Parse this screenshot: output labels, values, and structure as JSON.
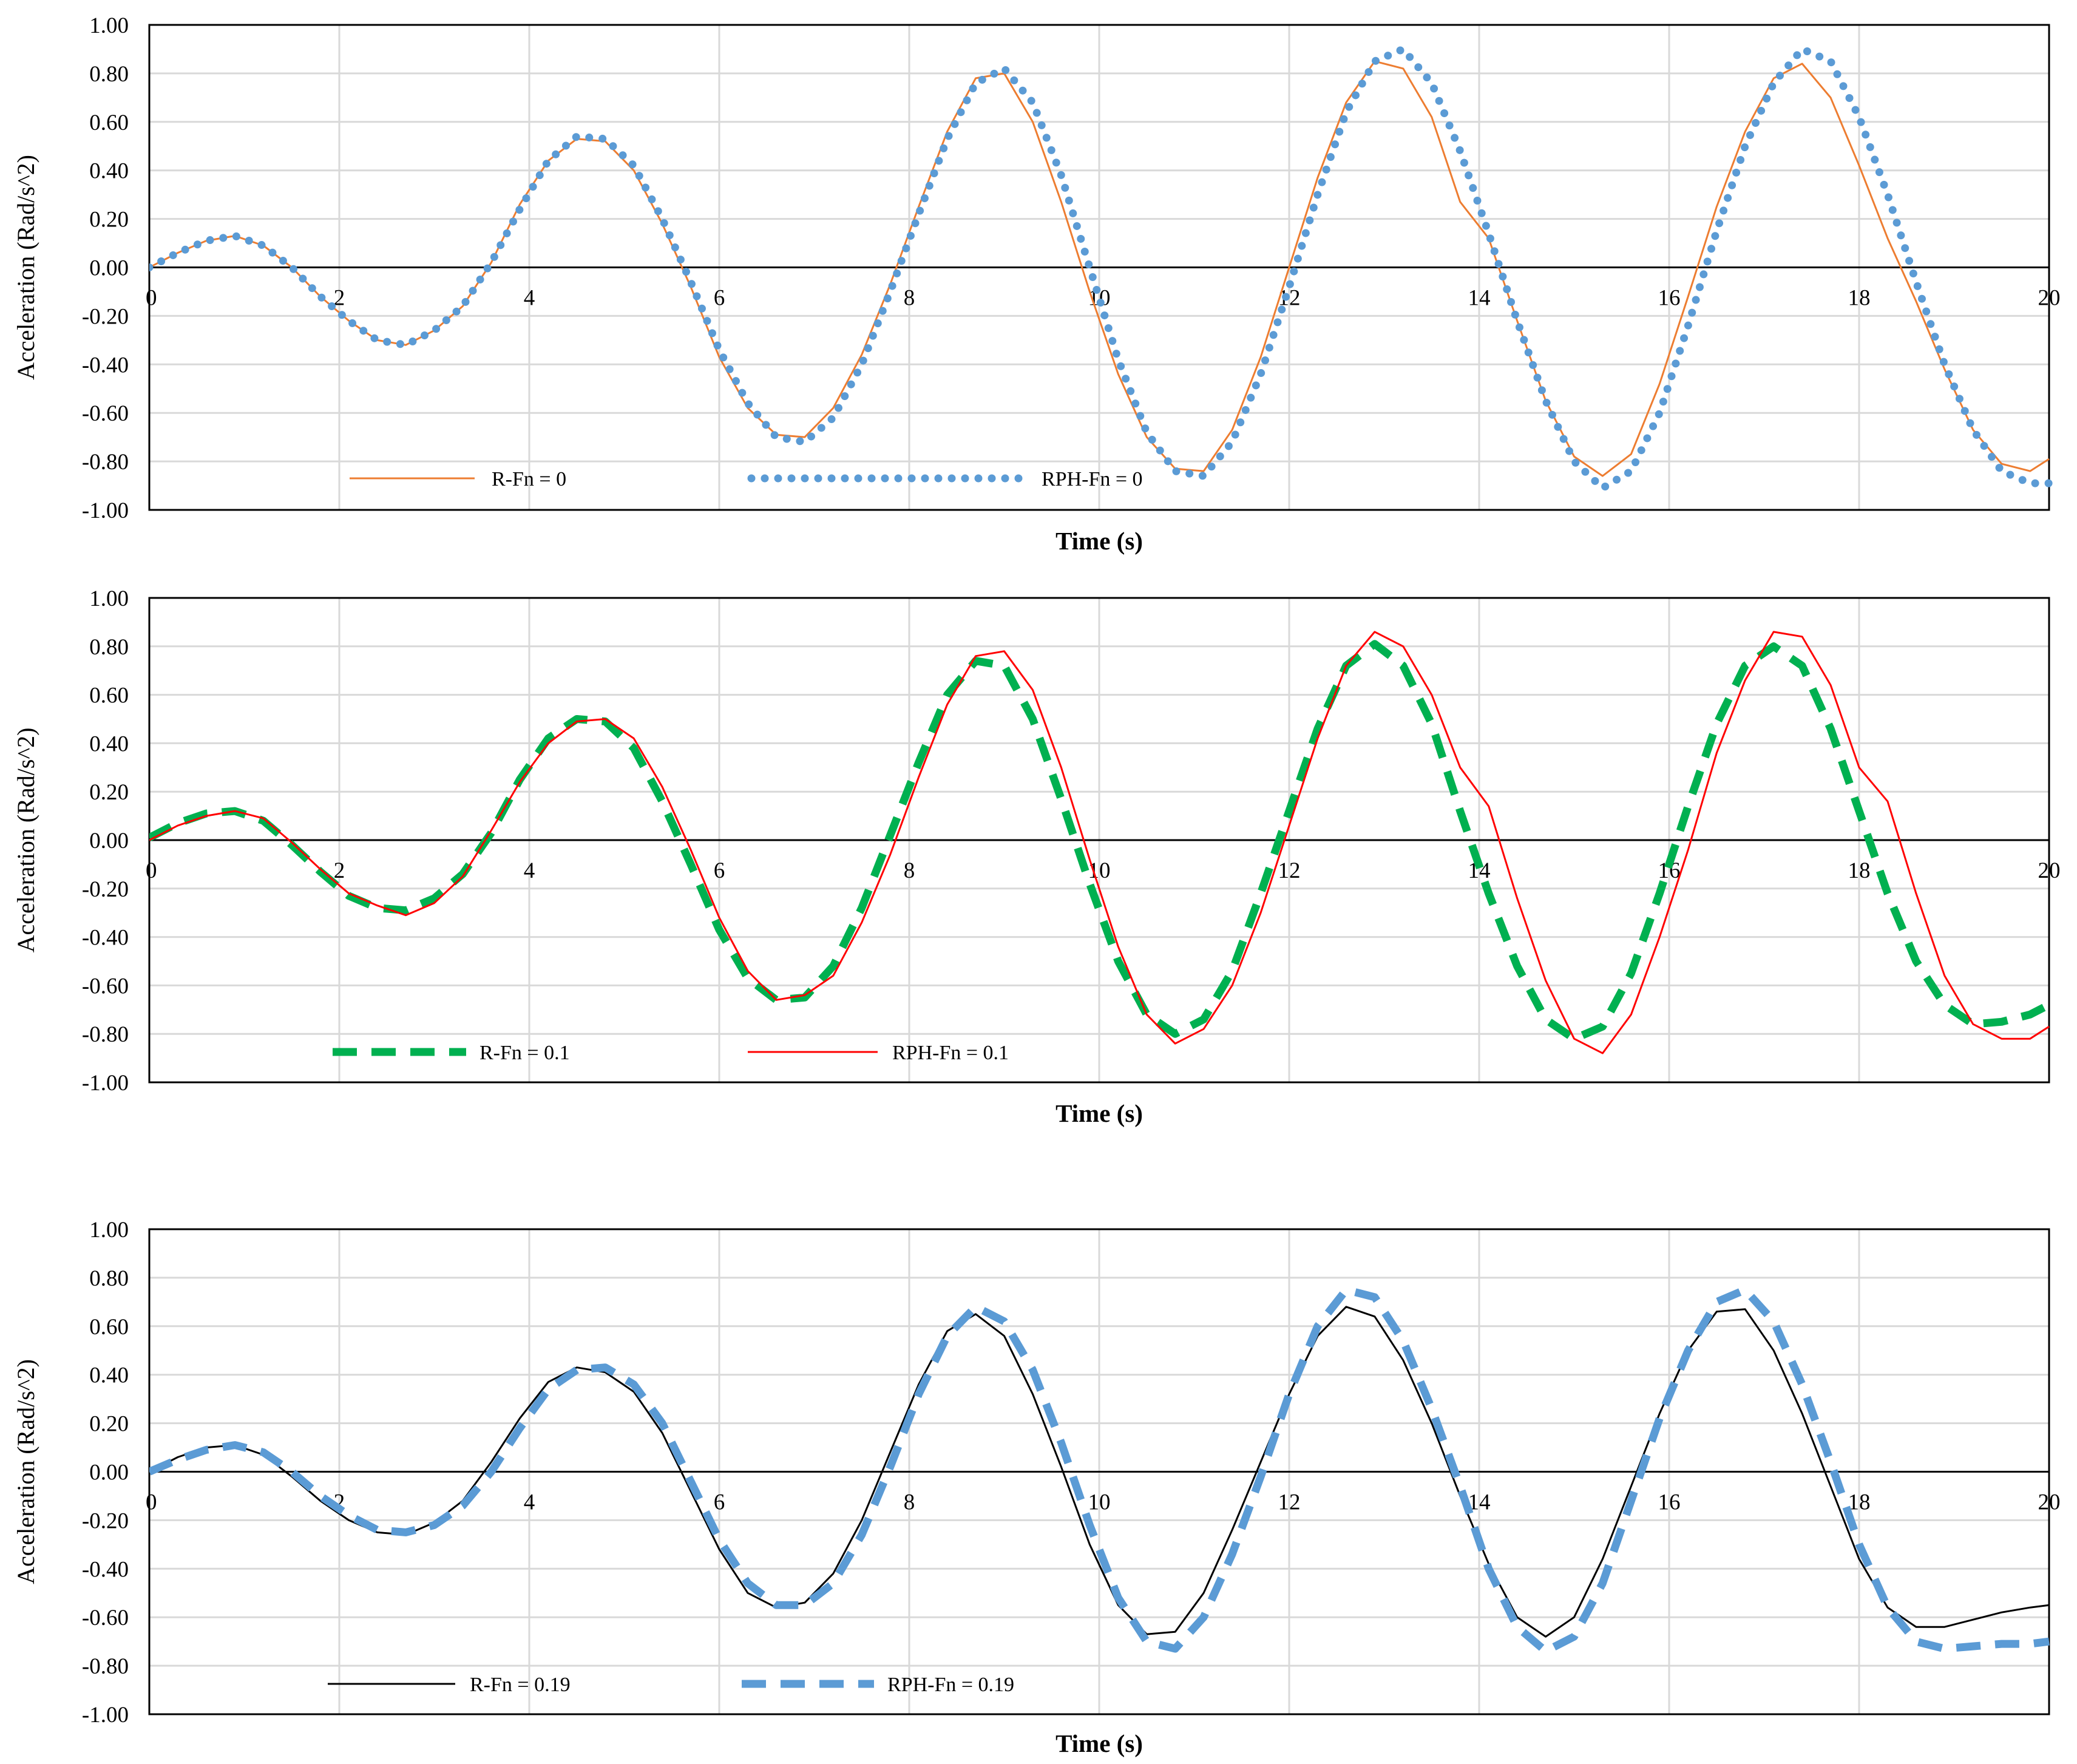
{
  "chart_data": [
    {
      "type": "line",
      "xlabel": "Time (s)",
      "ylabel": "Acceleration (Rad/s^2)",
      "xlim": [
        0,
        20
      ],
      "ylim": [
        -1.0,
        1.0
      ],
      "x_ticks": [
        "0",
        "2",
        "4",
        "6",
        "8",
        "10",
        "12",
        "14",
        "16",
        "18",
        "20"
      ],
      "y_ticks": [
        "1.00",
        "0.80",
        "0.60",
        "0.40",
        "0.20",
        "0.00",
        "-0.20",
        "-0.40",
        "-0.60",
        "-0.80",
        "-1.00"
      ],
      "grid": true,
      "legend_position": "bottom-left",
      "series": [
        {
          "name": "R-Fn = 0",
          "color": "#ED7D31",
          "style": "solid",
          "x": [
            0,
            0.3,
            0.6,
            0.9,
            1.2,
            1.5,
            1.8,
            2.1,
            2.4,
            2.7,
            3.0,
            3.3,
            3.6,
            3.9,
            4.2,
            4.5,
            4.8,
            5.1,
            5.4,
            5.7,
            6.0,
            6.3,
            6.6,
            6.9,
            7.2,
            7.5,
            7.8,
            8.1,
            8.4,
            8.7,
            9.0,
            9.3,
            9.6,
            9.9,
            10.2,
            10.5,
            10.8,
            11.1,
            11.4,
            11.7,
            12.0,
            12.3,
            12.6,
            12.9,
            13.2,
            13.5,
            13.8,
            14.1,
            14.4,
            14.7,
            15.0,
            15.3,
            15.6,
            15.9,
            16.2,
            16.5,
            16.8,
            17.1,
            17.4,
            17.7,
            18.0,
            18.3,
            18.6,
            18.9,
            19.2,
            19.5,
            19.8,
            20.0
          ],
          "y": [
            0.0,
            0.06,
            0.11,
            0.13,
            0.09,
            0.0,
            -0.12,
            -0.22,
            -0.3,
            -0.32,
            -0.26,
            -0.16,
            0.02,
            0.26,
            0.44,
            0.53,
            0.52,
            0.4,
            0.18,
            -0.08,
            -0.37,
            -0.58,
            -0.69,
            -0.7,
            -0.58,
            -0.36,
            -0.07,
            0.25,
            0.56,
            0.78,
            0.8,
            0.6,
            0.27,
            -0.1,
            -0.44,
            -0.7,
            -0.83,
            -0.84,
            -0.67,
            -0.37,
            0.0,
            0.37,
            0.68,
            0.85,
            0.82,
            0.62,
            0.27,
            0.12,
            -0.22,
            -0.55,
            -0.78,
            -0.86,
            -0.77,
            -0.48,
            -0.12,
            0.25,
            0.56,
            0.78,
            0.84,
            0.7,
            0.42,
            0.12,
            -0.14,
            -0.42,
            -0.67,
            -0.81,
            -0.84,
            -0.79
          ]
        },
        {
          "name": "RPH-Fn = 0",
          "color": "#5B9BD5",
          "style": "dotted",
          "x": [
            0,
            0.3,
            0.6,
            0.9,
            1.2,
            1.5,
            1.8,
            2.1,
            2.4,
            2.7,
            3.0,
            3.3,
            3.6,
            3.9,
            4.2,
            4.5,
            4.8,
            5.1,
            5.4,
            5.7,
            6.0,
            6.3,
            6.6,
            6.9,
            7.2,
            7.5,
            7.8,
            8.1,
            8.4,
            8.7,
            9.0,
            9.3,
            9.6,
            9.9,
            10.2,
            10.5,
            10.8,
            11.1,
            11.4,
            11.7,
            12.0,
            12.3,
            12.6,
            12.9,
            13.2,
            13.5,
            13.8,
            14.1,
            14.4,
            14.7,
            15.0,
            15.3,
            15.6,
            15.9,
            16.2,
            16.5,
            16.8,
            17.1,
            17.4,
            17.7,
            18.0,
            18.3,
            18.6,
            18.9,
            19.2,
            19.5,
            19.8,
            20.0
          ],
          "y": [
            0.0,
            0.06,
            0.11,
            0.13,
            0.09,
            0.0,
            -0.12,
            -0.22,
            -0.3,
            -0.32,
            -0.26,
            -0.16,
            0.02,
            0.24,
            0.44,
            0.54,
            0.53,
            0.42,
            0.2,
            -0.06,
            -0.34,
            -0.56,
            -0.7,
            -0.72,
            -0.62,
            -0.4,
            -0.1,
            0.22,
            0.53,
            0.76,
            0.82,
            0.68,
            0.38,
            0.0,
            -0.38,
            -0.68,
            -0.84,
            -0.86,
            -0.72,
            -0.44,
            -0.08,
            0.3,
            0.64,
            0.85,
            0.9,
            0.76,
            0.48,
            0.14,
            -0.22,
            -0.55,
            -0.8,
            -0.91,
            -0.84,
            -0.6,
            -0.24,
            0.15,
            0.5,
            0.76,
            0.9,
            0.85,
            0.62,
            0.3,
            -0.06,
            -0.4,
            -0.67,
            -0.84,
            -0.89,
            -0.89
          ]
        }
      ]
    },
    {
      "type": "line",
      "xlabel": "Time (s)",
      "ylabel": "Acceleration (Rad/s^2)",
      "xlim": [
        0,
        20
      ],
      "ylim": [
        -1.0,
        1.0
      ],
      "x_ticks": [
        "0",
        "2",
        "4",
        "6",
        "8",
        "10",
        "12",
        "14",
        "16",
        "18",
        "20"
      ],
      "y_ticks": [
        "1.00",
        "0.80",
        "0.60",
        "0.40",
        "0.20",
        "0.00",
        "-0.20",
        "-0.40",
        "-0.60",
        "-0.80",
        "-1.00"
      ],
      "grid": true,
      "legend_position": "bottom-left",
      "series": [
        {
          "name": "R-Fn = 0.1",
          "color": "#00B050",
          "style": "dashed-thick",
          "x": [
            0,
            0.3,
            0.6,
            0.9,
            1.2,
            1.5,
            1.8,
            2.1,
            2.4,
            2.7,
            3.0,
            3.3,
            3.6,
            3.9,
            4.2,
            4.5,
            4.8,
            5.1,
            5.4,
            5.7,
            6.0,
            6.3,
            6.6,
            6.9,
            7.2,
            7.5,
            7.8,
            8.1,
            8.4,
            8.7,
            9.0,
            9.3,
            9.6,
            9.9,
            10.2,
            10.5,
            10.8,
            11.1,
            11.4,
            11.7,
            12.0,
            12.3,
            12.6,
            12.9,
            13.2,
            13.5,
            13.8,
            14.1,
            14.4,
            14.7,
            15.0,
            15.3,
            15.6,
            15.9,
            16.2,
            16.5,
            16.8,
            17.1,
            17.4,
            17.7,
            18.0,
            18.3,
            18.6,
            18.9,
            19.2,
            19.5,
            19.8,
            20.0
          ],
          "y": [
            0.01,
            0.07,
            0.11,
            0.12,
            0.08,
            -0.02,
            -0.13,
            -0.23,
            -0.28,
            -0.29,
            -0.24,
            -0.14,
            0.03,
            0.25,
            0.42,
            0.5,
            0.49,
            0.38,
            0.16,
            -0.1,
            -0.37,
            -0.57,
            -0.66,
            -0.65,
            -0.52,
            -0.28,
            0.02,
            0.32,
            0.6,
            0.74,
            0.72,
            0.5,
            0.17,
            -0.18,
            -0.5,
            -0.72,
            -0.8,
            -0.74,
            -0.54,
            -0.22,
            0.12,
            0.46,
            0.72,
            0.81,
            0.72,
            0.48,
            0.12,
            -0.22,
            -0.52,
            -0.74,
            -0.82,
            -0.77,
            -0.55,
            -0.22,
            0.14,
            0.48,
            0.72,
            0.8,
            0.72,
            0.46,
            0.12,
            -0.22,
            -0.5,
            -0.68,
            -0.76,
            -0.75,
            -0.72,
            -0.68
          ]
        },
        {
          "name": "RPH-Fn = 0.1",
          "color": "#FF0000",
          "style": "solid",
          "x": [
            0,
            0.3,
            0.6,
            0.9,
            1.2,
            1.5,
            1.8,
            2.1,
            2.4,
            2.7,
            3.0,
            3.3,
            3.6,
            3.9,
            4.2,
            4.5,
            4.8,
            5.1,
            5.4,
            5.7,
            6.0,
            6.3,
            6.6,
            6.9,
            7.2,
            7.5,
            7.8,
            8.1,
            8.4,
            8.7,
            9.0,
            9.3,
            9.6,
            9.9,
            10.2,
            10.5,
            10.8,
            11.1,
            11.4,
            11.7,
            12.0,
            12.3,
            12.6,
            12.9,
            13.2,
            13.5,
            13.8,
            14.1,
            14.4,
            14.7,
            15.0,
            15.3,
            15.6,
            15.9,
            16.2,
            16.5,
            16.8,
            17.1,
            17.4,
            17.7,
            18.0,
            18.3,
            18.6,
            18.9,
            19.2,
            19.5,
            19.8,
            20.0
          ],
          "y": [
            0.0,
            0.06,
            0.1,
            0.12,
            0.09,
            -0.01,
            -0.12,
            -0.22,
            -0.27,
            -0.31,
            -0.26,
            -0.15,
            0.04,
            0.24,
            0.4,
            0.49,
            0.5,
            0.42,
            0.22,
            -0.04,
            -0.32,
            -0.54,
            -0.66,
            -0.64,
            -0.56,
            -0.34,
            -0.06,
            0.26,
            0.56,
            0.76,
            0.78,
            0.62,
            0.3,
            -0.08,
            -0.44,
            -0.72,
            -0.84,
            -0.78,
            -0.6,
            -0.3,
            0.06,
            0.42,
            0.72,
            0.86,
            0.8,
            0.6,
            0.3,
            0.14,
            -0.24,
            -0.58,
            -0.82,
            -0.88,
            -0.72,
            -0.4,
            -0.04,
            0.36,
            0.66,
            0.86,
            0.84,
            0.64,
            0.3,
            0.16,
            -0.22,
            -0.56,
            -0.76,
            -0.82,
            -0.82,
            -0.77
          ]
        }
      ]
    },
    {
      "type": "line",
      "xlabel": "Time (s)",
      "ylabel": "Acceleration (Rad/s^2)",
      "xlim": [
        0,
        20
      ],
      "ylim": [
        -1.0,
        1.0
      ],
      "x_ticks": [
        "0",
        "2",
        "4",
        "6",
        "8",
        "10",
        "12",
        "14",
        "16",
        "18",
        "20"
      ],
      "y_ticks": [
        "1.00",
        "0.80",
        "0.60",
        "0.40",
        "0.20",
        "0.00",
        "-0.20",
        "-0.40",
        "-0.60",
        "-0.80",
        "-1.00"
      ],
      "grid": true,
      "legend_position": "bottom-left",
      "series": [
        {
          "name": "R-Fn = 0.19",
          "color": "#000000",
          "style": "solid",
          "x": [
            0,
            0.3,
            0.6,
            0.9,
            1.2,
            1.5,
            1.8,
            2.1,
            2.4,
            2.7,
            3.0,
            3.3,
            3.6,
            3.9,
            4.2,
            4.5,
            4.8,
            5.1,
            5.4,
            5.7,
            6.0,
            6.3,
            6.6,
            6.9,
            7.2,
            7.5,
            7.8,
            8.1,
            8.4,
            8.7,
            9.0,
            9.3,
            9.6,
            9.9,
            10.2,
            10.5,
            10.8,
            11.1,
            11.4,
            11.7,
            12.0,
            12.3,
            12.6,
            12.9,
            13.2,
            13.5,
            13.8,
            14.1,
            14.4,
            14.7,
            15.0,
            15.3,
            15.6,
            15.9,
            16.2,
            16.5,
            16.8,
            17.1,
            17.4,
            17.7,
            18.0,
            18.3,
            18.6,
            18.9,
            19.2,
            19.5,
            19.8,
            20.0
          ],
          "y": [
            0.0,
            0.06,
            0.1,
            0.11,
            0.07,
            -0.02,
            -0.12,
            -0.2,
            -0.25,
            -0.26,
            -0.21,
            -0.12,
            0.04,
            0.22,
            0.37,
            0.43,
            0.41,
            0.33,
            0.16,
            -0.08,
            -0.32,
            -0.5,
            -0.56,
            -0.54,
            -0.42,
            -0.2,
            0.08,
            0.36,
            0.58,
            0.65,
            0.56,
            0.32,
            0.02,
            -0.3,
            -0.55,
            -0.67,
            -0.66,
            -0.5,
            -0.24,
            0.04,
            0.32,
            0.56,
            0.68,
            0.64,
            0.46,
            0.2,
            -0.1,
            -0.38,
            -0.6,
            -0.68,
            -0.6,
            -0.36,
            -0.06,
            0.24,
            0.5,
            0.66,
            0.67,
            0.5,
            0.24,
            -0.06,
            -0.36,
            -0.56,
            -0.64,
            -0.64,
            -0.61,
            -0.58,
            -0.56,
            -0.55
          ]
        },
        {
          "name": "RPH-Fn = 0.19",
          "color": "#5B9BD5",
          "style": "dashed-thick",
          "x": [
            0,
            0.3,
            0.6,
            0.9,
            1.2,
            1.5,
            1.8,
            2.1,
            2.4,
            2.7,
            3.0,
            3.3,
            3.6,
            3.9,
            4.2,
            4.5,
            4.8,
            5.1,
            5.4,
            5.7,
            6.0,
            6.3,
            6.6,
            6.9,
            7.2,
            7.5,
            7.8,
            8.1,
            8.4,
            8.7,
            9.0,
            9.3,
            9.6,
            9.9,
            10.2,
            10.5,
            10.8,
            11.1,
            11.4,
            11.7,
            12.0,
            12.3,
            12.6,
            12.9,
            13.2,
            13.5,
            13.8,
            14.1,
            14.4,
            14.7,
            15.0,
            15.3,
            15.6,
            15.9,
            16.2,
            16.5,
            16.8,
            17.1,
            17.4,
            17.7,
            18.0,
            18.3,
            18.6,
            18.9,
            19.2,
            19.5,
            19.8,
            20.0
          ],
          "y": [
            0.0,
            0.05,
            0.09,
            0.11,
            0.08,
            0.0,
            -0.1,
            -0.18,
            -0.24,
            -0.25,
            -0.22,
            -0.14,
            0.0,
            0.18,
            0.34,
            0.42,
            0.43,
            0.36,
            0.2,
            -0.04,
            -0.28,
            -0.46,
            -0.55,
            -0.55,
            -0.46,
            -0.26,
            0.02,
            0.32,
            0.56,
            0.68,
            0.62,
            0.42,
            0.12,
            -0.22,
            -0.52,
            -0.7,
            -0.73,
            -0.6,
            -0.34,
            -0.02,
            0.32,
            0.6,
            0.75,
            0.72,
            0.54,
            0.26,
            -0.06,
            -0.4,
            -0.64,
            -0.74,
            -0.68,
            -0.46,
            -0.12,
            0.22,
            0.5,
            0.7,
            0.75,
            0.62,
            0.36,
            0.04,
            -0.3,
            -0.56,
            -0.7,
            -0.73,
            -0.72,
            -0.71,
            -0.71,
            -0.7
          ]
        }
      ]
    }
  ]
}
